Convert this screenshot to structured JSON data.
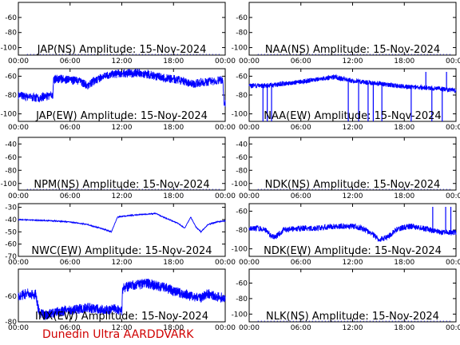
{
  "credit": "Dunedin Ultra AARDDVARK",
  "colors": {
    "trace": "#0000ff",
    "axis": "#000000",
    "credit": "#d00000"
  },
  "chart_data": [
    {
      "type": "line",
      "title": "JAP(NS) Amplitude: 15-Nov-2024",
      "ylim": [
        -110,
        -40
      ],
      "yticks": [
        "-100",
        "-80",
        "-60"
      ],
      "xticks": [
        "00:00",
        "06:00",
        "12:00",
        "18:00",
        "00:00"
      ],
      "x_hours": [
        0,
        24
      ],
      "series": [],
      "note": ""
    },
    {
      "type": "line",
      "title": "NAA(NS) Amplitude: 15-Nov-2024",
      "ylim": [
        -110,
        -40
      ],
      "yticks": [
        "-100",
        "-80",
        "-60"
      ],
      "xticks": [
        "00:00",
        "06:00",
        "12:00",
        "18:00",
        "00:00"
      ],
      "x_hours": [
        0,
        24
      ],
      "series": []
    },
    {
      "type": "line",
      "title": "JAP(EW) Amplitude: 15-Nov-2024",
      "ylim": [
        -108,
        -52
      ],
      "yticks": [
        "-100",
        "-80",
        "-60"
      ],
      "xticks": [
        "00:00",
        "06:00",
        "12:00",
        "18:00",
        "00:00"
      ],
      "x_hours": [
        0,
        24
      ],
      "series": [
        {
          "x": [
            0,
            1,
            2,
            3,
            4,
            4.1,
            5,
            6,
            7,
            8,
            9,
            10,
            11,
            12,
            13,
            14,
            15,
            16,
            17,
            18,
            19,
            20,
            21,
            22,
            23,
            23.7,
            23.9,
            24
          ],
          "y": [
            -80,
            -82,
            -83,
            -82,
            -80,
            -63,
            -63,
            -64,
            -65,
            -70,
            -64,
            -60,
            -58,
            -57,
            -57,
            -57,
            -58,
            -60,
            -62,
            -63,
            -65,
            -68,
            -67,
            -66,
            -65,
            -64,
            -90,
            -88
          ],
          "noise": 9
        }
      ]
    },
    {
      "type": "line",
      "title": "NAA(EW) Amplitude: 15-Nov-2024",
      "ylim": [
        -108,
        -52
      ],
      "yticks": [
        "-100",
        "-80",
        "-60"
      ],
      "xticks": [
        "00:00",
        "06:00",
        "12:00",
        "18:00",
        "00:00"
      ],
      "x_hours": [
        0,
        24
      ],
      "series": [
        {
          "x": [
            0,
            2,
            4,
            6,
            8,
            9,
            10,
            11,
            12,
            14,
            16,
            18,
            20,
            22,
            24
          ],
          "y": [
            -70,
            -70,
            -68,
            -66,
            -63,
            -62,
            -61,
            -63,
            -65,
            -67,
            -69,
            -71,
            -72,
            -73,
            -75
          ],
          "noise": 5,
          "spikes_down": [
            1.6,
            2.1,
            2.6,
            11.5,
            12.7,
            13.8,
            14.4,
            15.4,
            18.8,
            21.2,
            22.4
          ],
          "spikes_up": [
            20.5,
            22.9
          ]
        }
      ]
    },
    {
      "type": "line",
      "title": "NPM(NS) Amplitude: 15-Nov-2024",
      "ylim": [
        -110,
        -30
      ],
      "yticks": [
        "-100",
        "-80",
        "-60",
        "-40"
      ],
      "xticks": [
        "00:00",
        "06:00",
        "12:00",
        "18:00",
        "00:00"
      ],
      "x_hours": [
        0,
        24
      ],
      "series": []
    },
    {
      "type": "line",
      "title": "NDK(NS) Amplitude: 15-Nov-2024",
      "ylim": [
        -110,
        -30
      ],
      "yticks": [
        "-100",
        "-80",
        "-60",
        "-40"
      ],
      "xticks": [
        "00:00",
        "06:00",
        "12:00",
        "18:00",
        "00:00"
      ],
      "x_hours": [
        0,
        24
      ],
      "series": []
    },
    {
      "type": "line",
      "title": "NWC(EW) Amplitude: 15-Nov-2024",
      "ylim": [
        -70,
        -27
      ],
      "yticks": [
        "-70",
        "-60",
        "-50",
        "-40",
        "-30"
      ],
      "xticks": [
        "00:00",
        "06:00",
        "12:00",
        "18:00",
        "00:00"
      ],
      "x_hours": [
        0,
        24
      ],
      "series": [
        {
          "x": [
            0,
            2,
            4,
            6,
            8,
            9,
            10,
            10.8,
            11.5,
            12.5,
            14,
            16,
            16.5,
            17.5,
            18.5,
            19.3,
            20,
            20.6,
            21.2,
            22,
            23,
            24
          ],
          "y": [
            -40,
            -40.5,
            -41,
            -42,
            -44,
            -46,
            -48,
            -50,
            -38,
            -37,
            -36,
            -35,
            -37,
            -40,
            -43,
            -47,
            -38,
            -46,
            -50,
            -44,
            -42,
            -41
          ],
          "noise": 0.6
        }
      ]
    },
    {
      "type": "line",
      "title": "NDK(EW) Amplitude: 15-Nov-2024",
      "ylim": [
        -108,
        -52
      ],
      "yticks": [
        "-100",
        "-80",
        "-60"
      ],
      "xticks": [
        "00:00",
        "06:00",
        "12:00",
        "18:00",
        "00:00"
      ],
      "x_hours": [
        0,
        24
      ],
      "series": [
        {
          "x": [
            0,
            1,
            2,
            2.5,
            3,
            3.5,
            4,
            6,
            8,
            10,
            12,
            13,
            14,
            15,
            16,
            17,
            18,
            19,
            20,
            22,
            24
          ],
          "y": [
            -78,
            -78,
            -80,
            -86,
            -88,
            -84,
            -80,
            -78,
            -78,
            -76,
            -76,
            -78,
            -82,
            -90,
            -88,
            -80,
            -77,
            -76,
            -78,
            -82,
            -83
          ],
          "noise": 6,
          "spikes_up": [
            21.3,
            22.8,
            23.4
          ]
        }
      ]
    },
    {
      "type": "line",
      "title": "INX(EW) Amplitude: 15-Nov-2024",
      "ylim": [
        -80,
        -39
      ],
      "yticks": [
        "-80",
        "-60"
      ],
      "xticks": [
        "00:00",
        "06:00",
        "12:00",
        "18:00",
        "00:00"
      ],
      "x_hours": [
        0,
        24
      ],
      "series": [
        {
          "x": [
            0,
            1,
            2,
            2.4,
            3,
            4,
            5,
            6,
            7,
            8,
            9,
            10,
            11,
            12,
            12.1,
            13,
            14,
            15,
            16,
            17,
            18,
            19,
            20,
            21,
            22,
            23,
            24
          ],
          "y": [
            -60,
            -58,
            -59,
            -72,
            -75,
            -73,
            -72,
            -71,
            -70,
            -69,
            -70,
            -71,
            -70,
            -71,
            -54,
            -52,
            -51,
            -50,
            -52,
            -53,
            -56,
            -58,
            -60,
            -62,
            -58,
            -60,
            -62
          ],
          "noise": 8
        }
      ]
    },
    {
      "type": "line",
      "title": "NLK(NS) Amplitude: 15-Nov-2024",
      "ylim": [
        -110,
        -42
      ],
      "yticks": [
        "-100",
        "-80",
        "-60"
      ],
      "xticks": [
        "00:00",
        "06:00",
        "12:00",
        "18:00",
        "00:00"
      ],
      "x_hours": [
        0,
        24
      ],
      "series": []
    }
  ]
}
